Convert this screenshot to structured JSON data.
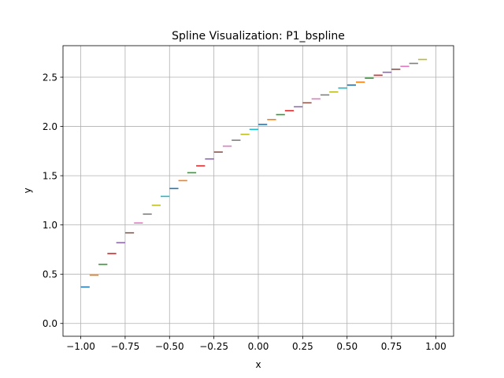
{
  "chart_data": {
    "type": "line",
    "title": "Spline Visualization: P1_bspline",
    "xlabel": "x",
    "ylabel": "y",
    "xlim": [
      -1.1,
      1.1
    ],
    "ylim": [
      -0.13,
      2.82
    ],
    "xticks": [
      -1.0,
      -0.75,
      -0.5,
      -0.25,
      0.0,
      0.25,
      0.5,
      0.75,
      1.0
    ],
    "xtick_labels": [
      "−1.00",
      "−0.75",
      "−0.50",
      "−0.25",
      "0.00",
      "0.25",
      "0.50",
      "0.75",
      "1.00"
    ],
    "yticks": [
      0.0,
      0.5,
      1.0,
      1.5,
      2.0,
      2.5
    ],
    "ytick_labels": [
      "0.0",
      "0.5",
      "1.0",
      "1.5",
      "2.0",
      "2.5"
    ],
    "grid": true,
    "segments": [
      {
        "x": [
          -1.0,
          -0.95
        ],
        "y": [
          0.37,
          0.37
        ],
        "color": "#1f77b4"
      },
      {
        "x": [
          -0.95,
          -0.9
        ],
        "y": [
          0.49,
          0.49
        ],
        "color": "#ff7f0e"
      },
      {
        "x": [
          -0.9,
          -0.85
        ],
        "y": [
          0.6,
          0.6
        ],
        "color": "#2ca02c"
      },
      {
        "x": [
          -0.85,
          -0.8
        ],
        "y": [
          0.71,
          0.71
        ],
        "color": "#d62728"
      },
      {
        "x": [
          -0.8,
          -0.75
        ],
        "y": [
          0.82,
          0.82
        ],
        "color": "#9467bd"
      },
      {
        "x": [
          -0.75,
          -0.7
        ],
        "y": [
          0.92,
          0.92
        ],
        "color": "#8c564b"
      },
      {
        "x": [
          -0.7,
          -0.65
        ],
        "y": [
          1.02,
          1.02
        ],
        "color": "#e377c2"
      },
      {
        "x": [
          -0.65,
          -0.6
        ],
        "y": [
          1.11,
          1.11
        ],
        "color": "#7f7f7f"
      },
      {
        "x": [
          -0.6,
          -0.55
        ],
        "y": [
          1.2,
          1.2
        ],
        "color": "#bcbd22"
      },
      {
        "x": [
          -0.55,
          -0.5
        ],
        "y": [
          1.29,
          1.29
        ],
        "color": "#17becf"
      },
      {
        "x": [
          -0.5,
          -0.45
        ],
        "y": [
          1.37,
          1.37
        ],
        "color": "#1f77b4"
      },
      {
        "x": [
          -0.45,
          -0.4
        ],
        "y": [
          1.45,
          1.45
        ],
        "color": "#ff7f0e"
      },
      {
        "x": [
          -0.4,
          -0.35
        ],
        "y": [
          1.53,
          1.53
        ],
        "color": "#2ca02c"
      },
      {
        "x": [
          -0.35,
          -0.3
        ],
        "y": [
          1.6,
          1.6
        ],
        "color": "#d62728"
      },
      {
        "x": [
          -0.3,
          -0.25
        ],
        "y": [
          1.67,
          1.67
        ],
        "color": "#9467bd"
      },
      {
        "x": [
          -0.25,
          -0.2
        ],
        "y": [
          1.74,
          1.74
        ],
        "color": "#8c564b"
      },
      {
        "x": [
          -0.2,
          -0.15
        ],
        "y": [
          1.8,
          1.8
        ],
        "color": "#e377c2"
      },
      {
        "x": [
          -0.15,
          -0.1
        ],
        "y": [
          1.86,
          1.86
        ],
        "color": "#7f7f7f"
      },
      {
        "x": [
          -0.1,
          -0.05
        ],
        "y": [
          1.92,
          1.92
        ],
        "color": "#bcbd22"
      },
      {
        "x": [
          -0.05,
          0.0
        ],
        "y": [
          1.97,
          1.97
        ],
        "color": "#17becf"
      },
      {
        "x": [
          0.0,
          0.05
        ],
        "y": [
          2.02,
          2.02
        ],
        "color": "#1f77b4"
      },
      {
        "x": [
          0.05,
          0.1
        ],
        "y": [
          2.07,
          2.07
        ],
        "color": "#ff7f0e"
      },
      {
        "x": [
          0.1,
          0.15
        ],
        "y": [
          2.12,
          2.12
        ],
        "color": "#2ca02c"
      },
      {
        "x": [
          0.15,
          0.2
        ],
        "y": [
          2.16,
          2.16
        ],
        "color": "#d62728"
      },
      {
        "x": [
          0.2,
          0.25
        ],
        "y": [
          2.2,
          2.2
        ],
        "color": "#9467bd"
      },
      {
        "x": [
          0.25,
          0.3
        ],
        "y": [
          2.24,
          2.24
        ],
        "color": "#8c564b"
      },
      {
        "x": [
          0.3,
          0.35
        ],
        "y": [
          2.28,
          2.28
        ],
        "color": "#e377c2"
      },
      {
        "x": [
          0.35,
          0.4
        ],
        "y": [
          2.32,
          2.32
        ],
        "color": "#7f7f7f"
      },
      {
        "x": [
          0.4,
          0.45
        ],
        "y": [
          2.35,
          2.35
        ],
        "color": "#bcbd22"
      },
      {
        "x": [
          0.45,
          0.5
        ],
        "y": [
          2.39,
          2.39
        ],
        "color": "#17becf"
      },
      {
        "x": [
          0.5,
          0.55
        ],
        "y": [
          2.42,
          2.42
        ],
        "color": "#1f77b4"
      },
      {
        "x": [
          0.55,
          0.6
        ],
        "y": [
          2.45,
          2.45
        ],
        "color": "#ff7f0e"
      },
      {
        "x": [
          0.6,
          0.65
        ],
        "y": [
          2.49,
          2.49
        ],
        "color": "#2ca02c"
      },
      {
        "x": [
          0.65,
          0.7
        ],
        "y": [
          2.52,
          2.52
        ],
        "color": "#d62728"
      },
      {
        "x": [
          0.7,
          0.75
        ],
        "y": [
          2.55,
          2.55
        ],
        "color": "#9467bd"
      },
      {
        "x": [
          0.75,
          0.8
        ],
        "y": [
          2.58,
          2.58
        ],
        "color": "#8c564b"
      },
      {
        "x": [
          0.8,
          0.85
        ],
        "y": [
          2.61,
          2.61
        ],
        "color": "#e377c2"
      },
      {
        "x": [
          0.85,
          0.9
        ],
        "y": [
          2.64,
          2.64
        ],
        "color": "#7f7f7f"
      },
      {
        "x": [
          0.9,
          0.95
        ],
        "y": [
          2.68,
          2.68
        ],
        "color": "#bcbd22"
      }
    ]
  }
}
